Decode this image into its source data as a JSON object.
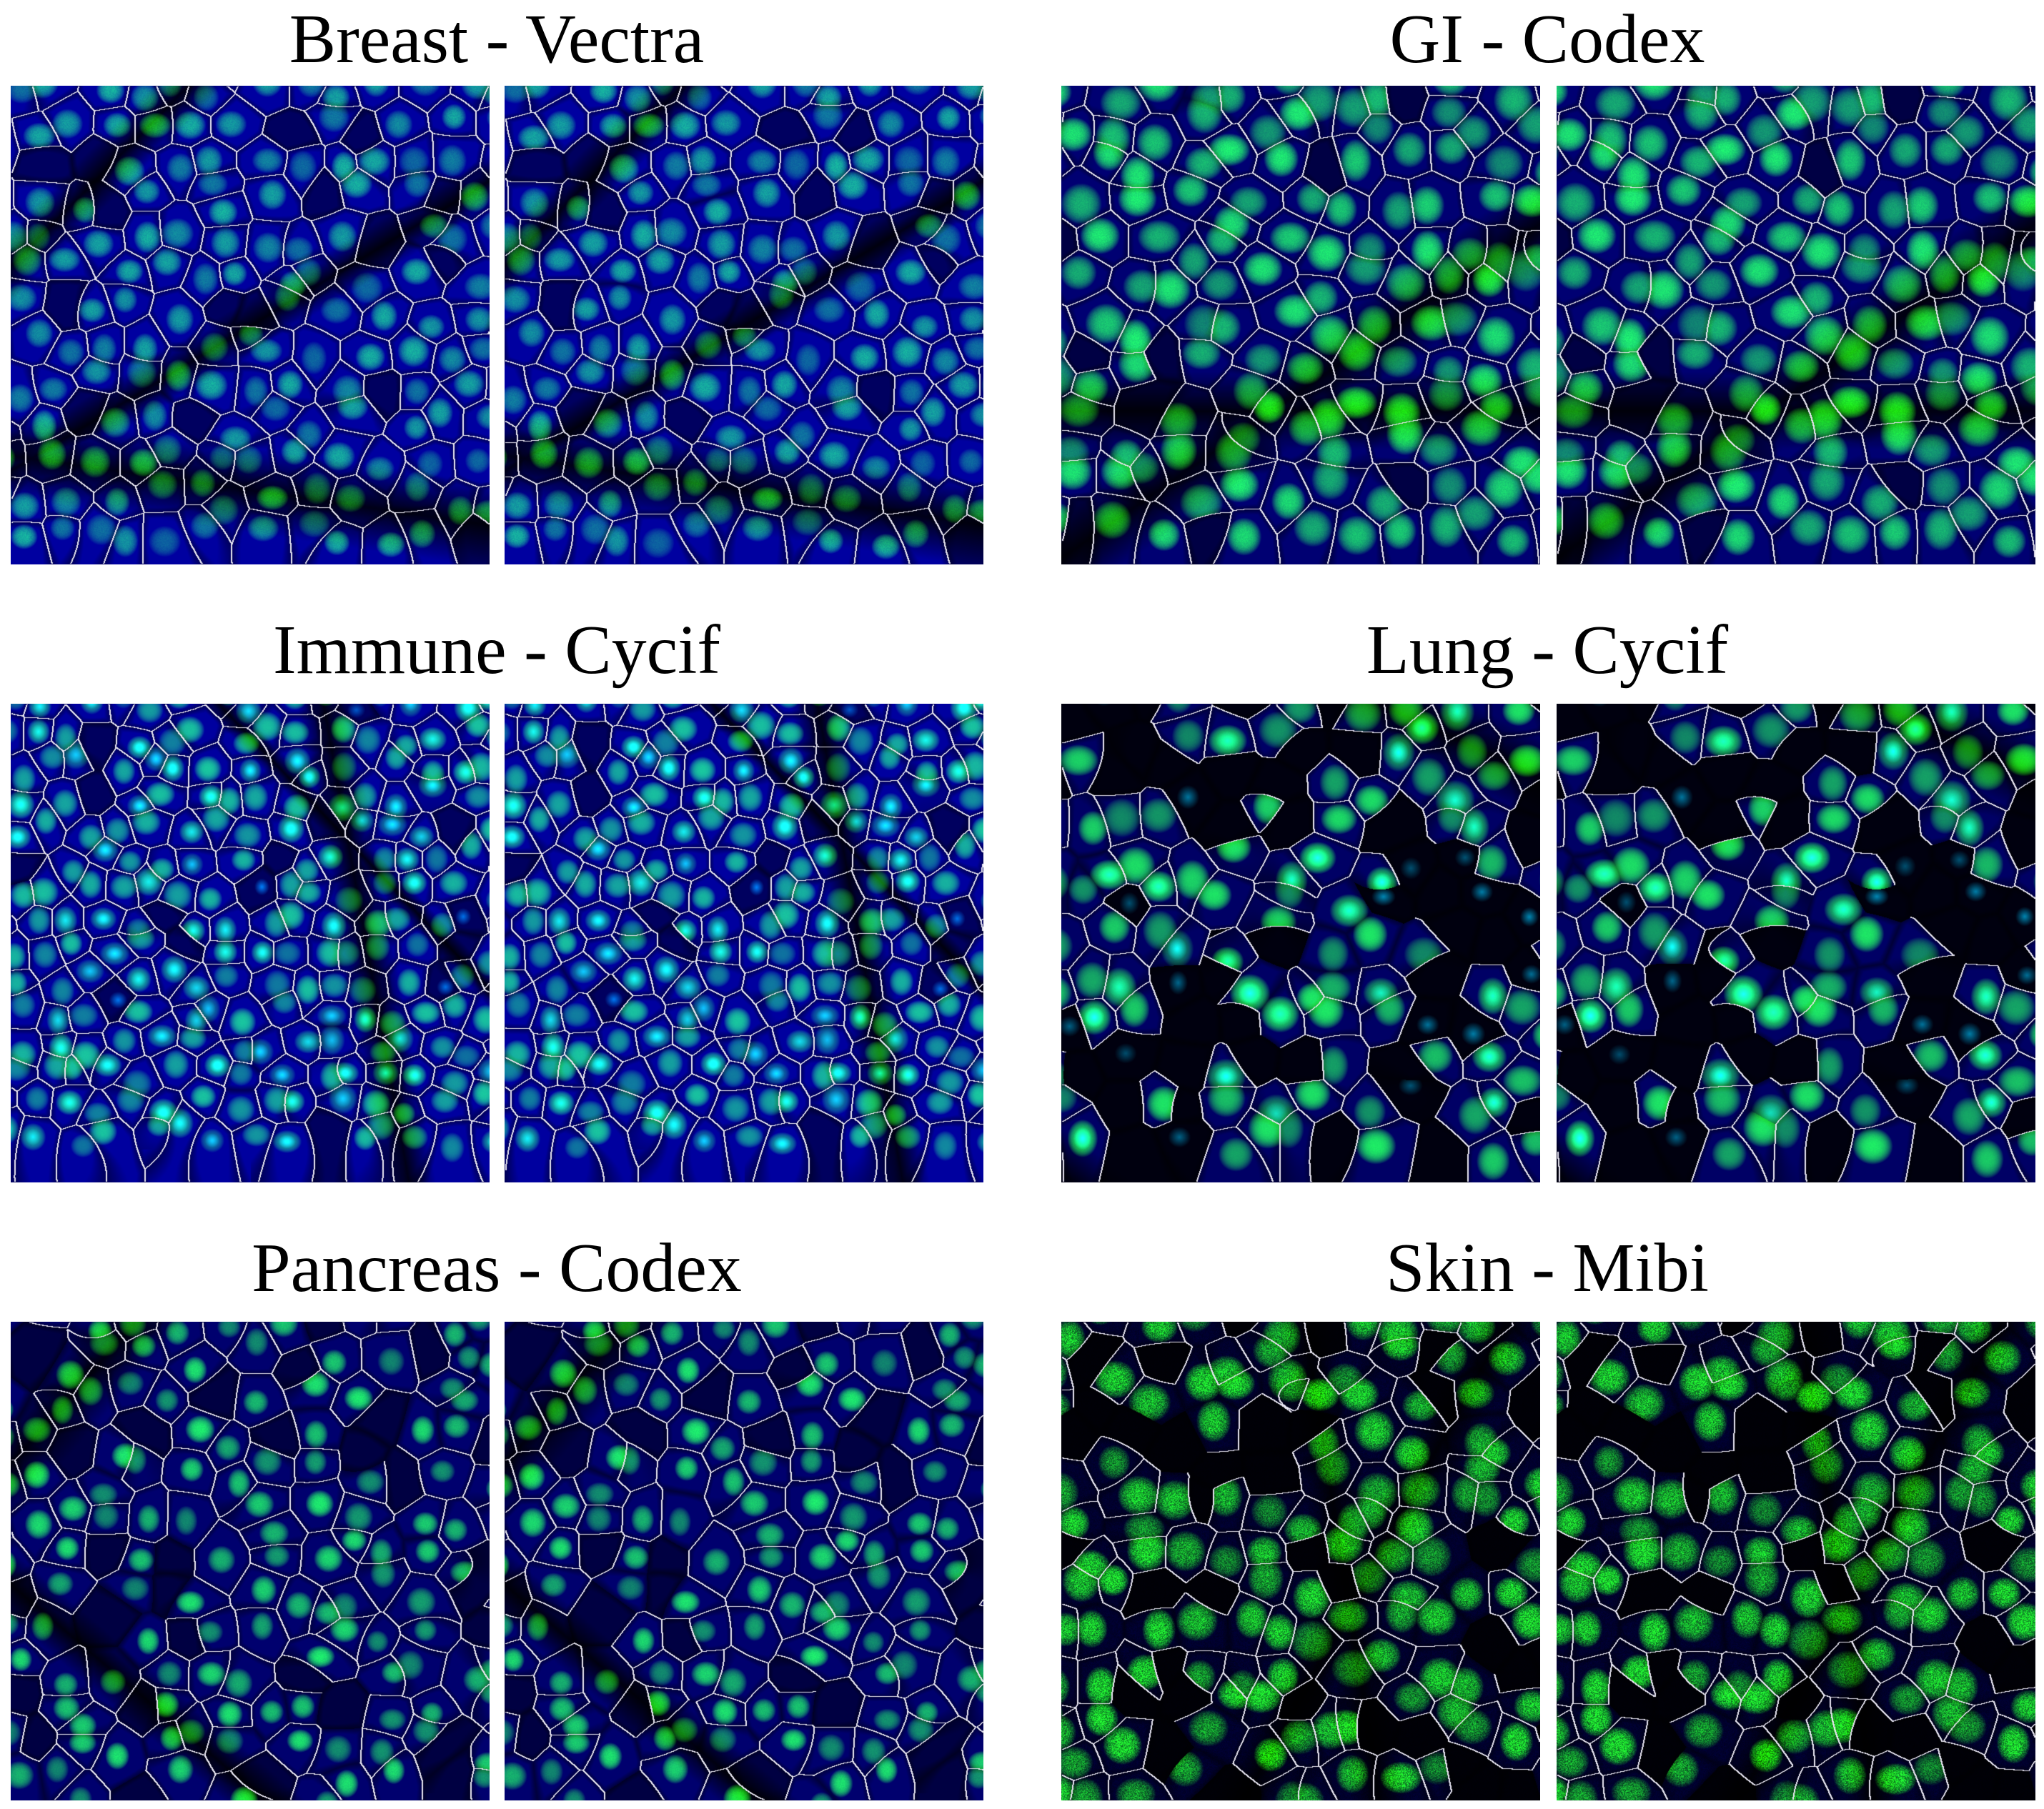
{
  "panels": [
    {
      "title": "Breast - Vectra",
      "style": "vectra"
    },
    {
      "title": "GI - Codex",
      "style": "codex"
    },
    {
      "title": "Immune - Cycif",
      "style": "cycif"
    },
    {
      "title": "Lung - Cycif",
      "style": "lung"
    },
    {
      "title": "Pancreas - Codex",
      "style": "pancreas"
    },
    {
      "title": "Skin - Mibi",
      "style": "mibi"
    }
  ],
  "colors": {
    "nucleus": "#18e81a",
    "cytoplasm": "#1f2be0",
    "background": "#000000",
    "outline": "#e8e6f2"
  }
}
